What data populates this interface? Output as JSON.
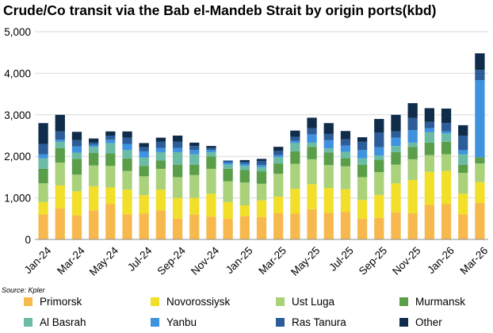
{
  "title": "Crude/Co transit via the Bab el-Mandeb Strait by origin ports(kbd)",
  "source": "Source: Kpler",
  "colors": {
    "Primorsk": "#f7b94e",
    "Novorossiysk": "#f2df2a",
    "Ust Luga": "#a9d27b",
    "Murmansk": "#5a9e4a",
    "Al Basrah": "#6cbba5",
    "Yanbu": "#3f93de",
    "Ras Tanura": "#2c5d98",
    "Other": "#0f2c4a",
    "grid": "#d9d9d9",
    "axis": "#8c8c8c"
  },
  "chart_data": {
    "type": "bar",
    "stacked": true,
    "title": "Crude/Co transit via the Bab el-Mandeb Strait by origin ports(kbd)",
    "xlabel": "",
    "ylabel": "",
    "ylim": [
      0,
      5000
    ],
    "yticks": [
      0,
      1000,
      2000,
      3000,
      4000,
      5000
    ],
    "ytick_labels": [
      "0",
      "1,000",
      "2,000",
      "3,000",
      "4,000",
      "5,000"
    ],
    "grid": true,
    "legend_position": "bottom",
    "categories": [
      "Jan-24",
      "Feb-24",
      "Mar-24",
      "Apr-24",
      "May-24",
      "Jun-24",
      "Jul-24",
      "Aug-24",
      "Sep-24",
      "Oct-24",
      "Nov-24",
      "Dec-24",
      "Jan-25",
      "Feb-25",
      "Mar-25",
      "Apr-25",
      "May-25",
      "Jun-25",
      "Jul-25",
      "Aug-25",
      "Sep-25",
      "Oct-25",
      "Nov-25",
      "Dec-25",
      "Jan-26",
      "Feb-26",
      "Mar-26"
    ],
    "xtick_labels": [
      "Jan-24",
      "",
      "Mar-24",
      "",
      "May-24",
      "",
      "Jul-24",
      "",
      "Sep-24",
      "",
      "Nov-24",
      "",
      "Jan-25",
      "",
      "Mar-25",
      "",
      "May-25",
      "",
      "Jul-25",
      "",
      "Sep-25",
      "",
      "Nov-25",
      "",
      "Jan-26",
      "",
      "Mar-26"
    ],
    "series": [
      {
        "name": "Primorsk",
        "values": [
          600,
          750,
          580,
          700,
          850,
          600,
          620,
          700,
          500,
          600,
          550,
          500,
          560,
          540,
          630,
          620,
          730,
          640,
          660,
          500,
          520,
          650,
          630,
          830,
          850,
          600,
          880
        ]
      },
      {
        "name": "Novorossiysk",
        "values": [
          300,
          550,
          580,
          580,
          400,
          600,
          450,
          500,
          500,
          400,
          550,
          400,
          260,
          400,
          400,
          600,
          600,
          600,
          550,
          450,
          550,
          700,
          800,
          800,
          800,
          500,
          500
        ]
      },
      {
        "name": "Ust Luga",
        "values": [
          450,
          550,
          400,
          500,
          520,
          450,
          450,
          500,
          500,
          550,
          600,
          500,
          550,
          400,
          550,
          600,
          600,
          550,
          550,
          550,
          550,
          450,
          500,
          400,
          400,
          500,
          450
        ]
      },
      {
        "name": "Murmansk",
        "values": [
          350,
          350,
          380,
          300,
          300,
          300,
          250,
          200,
          300,
          250,
          300,
          300,
          300,
          300,
          250,
          300,
          300,
          300,
          200,
          300,
          300,
          300,
          300,
          300,
          300,
          200,
          150
        ]
      },
      {
        "name": "Al Basrah",
        "values": [
          250,
          150,
          150,
          150,
          250,
          200,
          200,
          200,
          300,
          250,
          100,
          100,
          100,
          100,
          150,
          200,
          100,
          100,
          150,
          150,
          100,
          150,
          100,
          250,
          200,
          250,
          0
        ]
      },
      {
        "name": "Yanbu",
        "values": [
          100,
          50,
          150,
          50,
          80,
          150,
          150,
          100,
          100,
          100,
          50,
          50,
          50,
          50,
          50,
          50,
          200,
          200,
          150,
          200,
          200,
          200,
          300,
          100,
          50,
          100,
          1850
        ]
      },
      {
        "name": "Ras Tanura",
        "values": [
          250,
          200,
          150,
          50,
          100,
          150,
          100,
          150,
          150,
          100,
          50,
          50,
          50,
          100,
          100,
          100,
          150,
          150,
          150,
          200,
          350,
          150,
          300,
          150,
          200,
          350,
          250
        ]
      },
      {
        "name": "Other",
        "values": [
          500,
          400,
          200,
          100,
          100,
          150,
          100,
          100,
          150,
          80,
          50,
          0,
          40,
          50,
          100,
          150,
          250,
          260,
          200,
          110,
          330,
          400,
          350,
          330,
          350,
          250,
          400
        ]
      }
    ]
  },
  "legend": [
    {
      "label": "Primorsk"
    },
    {
      "label": "Novorossiysk"
    },
    {
      "label": "Ust Luga"
    },
    {
      "label": "Murmansk"
    },
    {
      "label": "Al Basrah"
    },
    {
      "label": "Yanbu"
    },
    {
      "label": "Ras Tanura"
    },
    {
      "label": "Other"
    }
  ]
}
